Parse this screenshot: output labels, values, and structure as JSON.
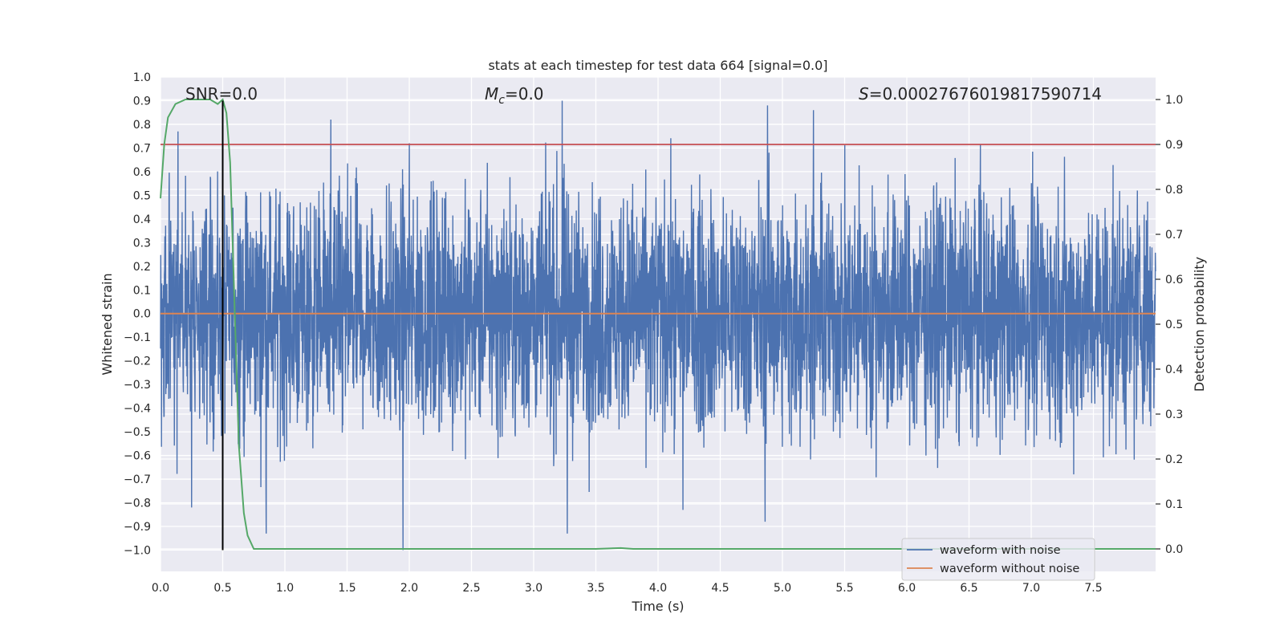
{
  "chart_data": {
    "type": "line",
    "title": "stats at each timestep for test data 664 [signal=0.0]",
    "xlabel": "Time (s)",
    "ylabel_left": "Whitened strain",
    "ylabel_right": "Detection probability",
    "xlim": [
      0.0,
      8.0
    ],
    "ylim_left": [
      -1.09,
      1.0
    ],
    "ylim_right": [
      -0.05,
      1.05
    ],
    "x_ticks": [
      "0.0",
      "0.5",
      "1.0",
      "1.5",
      "2.0",
      "2.5",
      "3.0",
      "3.5",
      "4.0",
      "4.5",
      "5.0",
      "5.5",
      "6.0",
      "6.5",
      "7.0",
      "7.5"
    ],
    "y_left_ticks": [
      "1.0",
      "0.9",
      "0.8",
      "0.7",
      "0.6",
      "0.5",
      "0.4",
      "0.3",
      "0.2",
      "0.1",
      "0.0",
      "−0.1",
      "−0.2",
      "−0.3",
      "−0.4",
      "−0.5",
      "−0.6",
      "−0.7",
      "−0.8",
      "−0.9",
      "−1.0"
    ],
    "y_right_ticks": [
      "0.0",
      "0.1",
      "0.2",
      "0.3",
      "0.4",
      "0.5",
      "0.6",
      "0.7",
      "0.8",
      "0.9",
      "1.0"
    ],
    "grid": true,
    "legend_position": "lower right",
    "annotations": {
      "snr": "SNR=0.0",
      "mc_symbol": "M",
      "mc_sub": "c",
      "mc_value": "=0.0",
      "s_symbol": "S",
      "s_value": "=0.00027676019817590714"
    },
    "series": [
      {
        "name": "waveform with noise",
        "axis": "left",
        "color": "#4c72b0",
        "x_range": [
          0.0,
          8.0
        ],
        "typical_amplitude": 0.45,
        "notable_peaks": [
          {
            "x": 3.23,
            "y": 0.9
          },
          {
            "x": 4.88,
            "y": 0.88
          },
          {
            "x": 1.37,
            "y": 0.82
          },
          {
            "x": 5.25,
            "y": 0.86
          },
          {
            "x": 0.14,
            "y": 0.77
          },
          {
            "x": 2.0,
            "y": 0.72
          }
        ],
        "notable_troughs": [
          {
            "x": 1.95,
            "y": -1.0
          },
          {
            "x": 3.27,
            "y": -0.93
          },
          {
            "x": 0.85,
            "y": -0.93
          },
          {
            "x": 4.86,
            "y": -0.88
          },
          {
            "x": 4.2,
            "y": -0.83
          },
          {
            "x": 0.25,
            "y": -0.82
          }
        ]
      },
      {
        "name": "waveform without noise",
        "axis": "left",
        "color": "#dd8452",
        "x": [
          0.0,
          8.0
        ],
        "y": [
          0.0,
          0.0
        ]
      },
      {
        "axis": "right",
        "color": "#55a868",
        "x": [
          0.0,
          0.03,
          0.06,
          0.12,
          0.2,
          0.3,
          0.4,
          0.46,
          0.5,
          0.53,
          0.56,
          0.6,
          0.63,
          0.67,
          0.7,
          0.75,
          0.8,
          1.0,
          2.0,
          3.0,
          3.5,
          3.7,
          3.8,
          4.5,
          5.0,
          6.0,
          7.0,
          8.0
        ],
        "y": [
          0.78,
          0.9,
          0.96,
          0.99,
          1.0,
          1.0,
          1.0,
          0.99,
          1.0,
          0.97,
          0.86,
          0.5,
          0.23,
          0.08,
          0.03,
          0.0,
          0.0,
          0.0,
          0.0,
          0.0,
          0.0,
          0.002,
          0.0,
          0.0,
          0.0,
          0.0,
          0.0,
          0.0
        ]
      }
    ],
    "reference_lines": [
      {
        "kind": "horizontal",
        "axis": "right",
        "y": 0.9,
        "color": "#c44e52"
      },
      {
        "kind": "vertical",
        "x": 0.5,
        "y_range_left": [
          -1.0,
          0.9
        ],
        "color": "#000000"
      }
    ],
    "colors": {
      "plot_background": "#eaeaf2",
      "grid": "#ffffff",
      "noise": "#4c72b0",
      "clean": "#dd8452",
      "probability": "#55a868",
      "threshold": "#c44e52",
      "marker": "#000000"
    }
  }
}
